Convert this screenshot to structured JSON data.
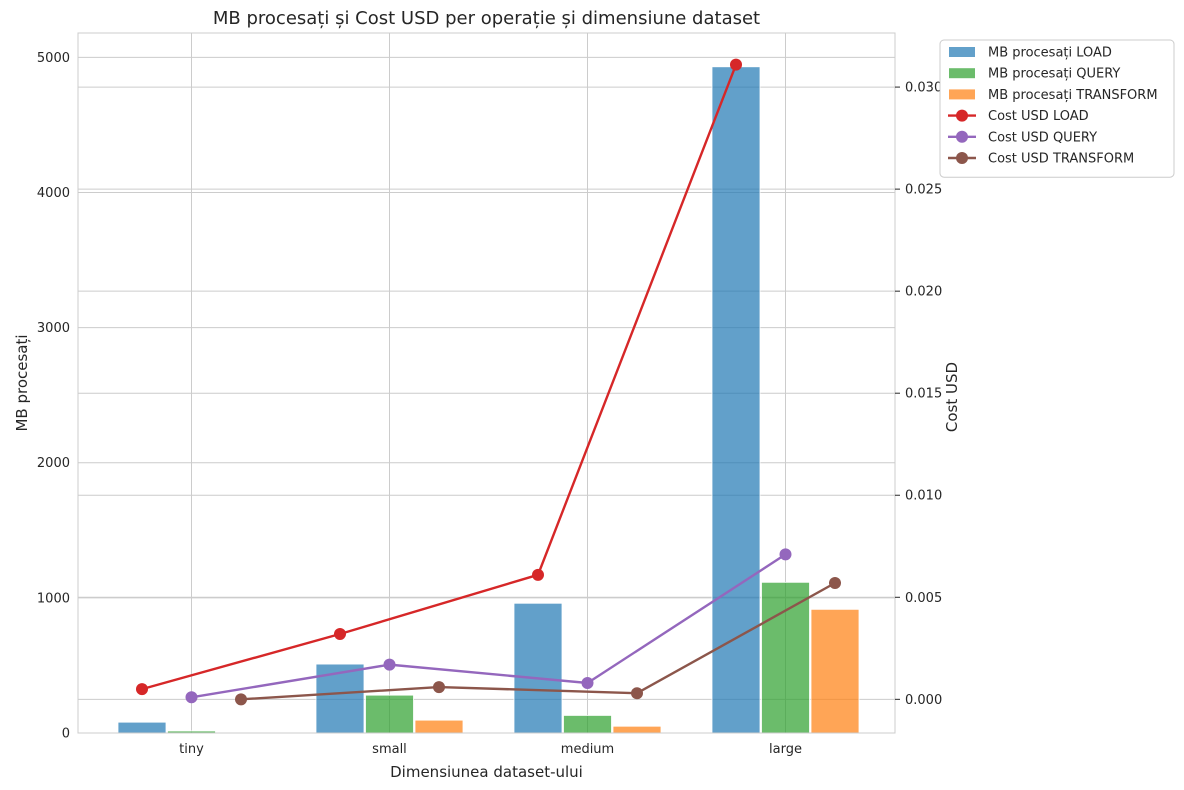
{
  "chart_data": {
    "type": "bar",
    "title": "MB procesați și Cost USD per operație și dimensiune dataset",
    "xlabel": "Dimensiunea dataset-ului",
    "ylabel": "MB procesați",
    "y2label": "Cost USD",
    "categories": [
      "tiny",
      "small",
      "medium",
      "large"
    ],
    "ylim": [
      0,
      5180
    ],
    "y2lim": [
      -0.00165,
      0.03265
    ],
    "yticks": [
      0,
      1000,
      2000,
      3000,
      4000,
      5000
    ],
    "y2ticks": [
      0.0,
      0.005,
      0.01,
      0.015,
      0.02,
      0.025,
      0.03
    ],
    "y2tick_labels": [
      "0.000",
      "0.005",
      "0.010",
      "0.015",
      "0.020",
      "0.025",
      "0.030"
    ],
    "grid": true,
    "legend_position": "outside-top-right",
    "bar_series": [
      {
        "name": "MB procesați LOAD",
        "color": "#1f77b4",
        "values": [
          80,
          510,
          960,
          4930
        ]
      },
      {
        "name": "MB procesați QUERY",
        "color": "#2ca02c",
        "values": [
          15,
          280,
          130,
          1115
        ]
      },
      {
        "name": "MB procesați TRANSFORM",
        "color": "#ff7f0e",
        "values": [
          5,
          95,
          50,
          915
        ]
      }
    ],
    "line_series": [
      {
        "name": "Cost USD LOAD",
        "color": "#d62728",
        "values": [
          0.0005,
          0.0032,
          0.0061,
          0.0311
        ]
      },
      {
        "name": "Cost USD QUERY",
        "color": "#9467bd",
        "values": [
          0.0001,
          0.0017,
          0.0008,
          0.0071
        ]
      },
      {
        "name": "Cost USD TRANSFORM",
        "color": "#8c564b",
        "values": [
          0.0,
          0.0006,
          0.0003,
          0.0057
        ]
      }
    ]
  }
}
